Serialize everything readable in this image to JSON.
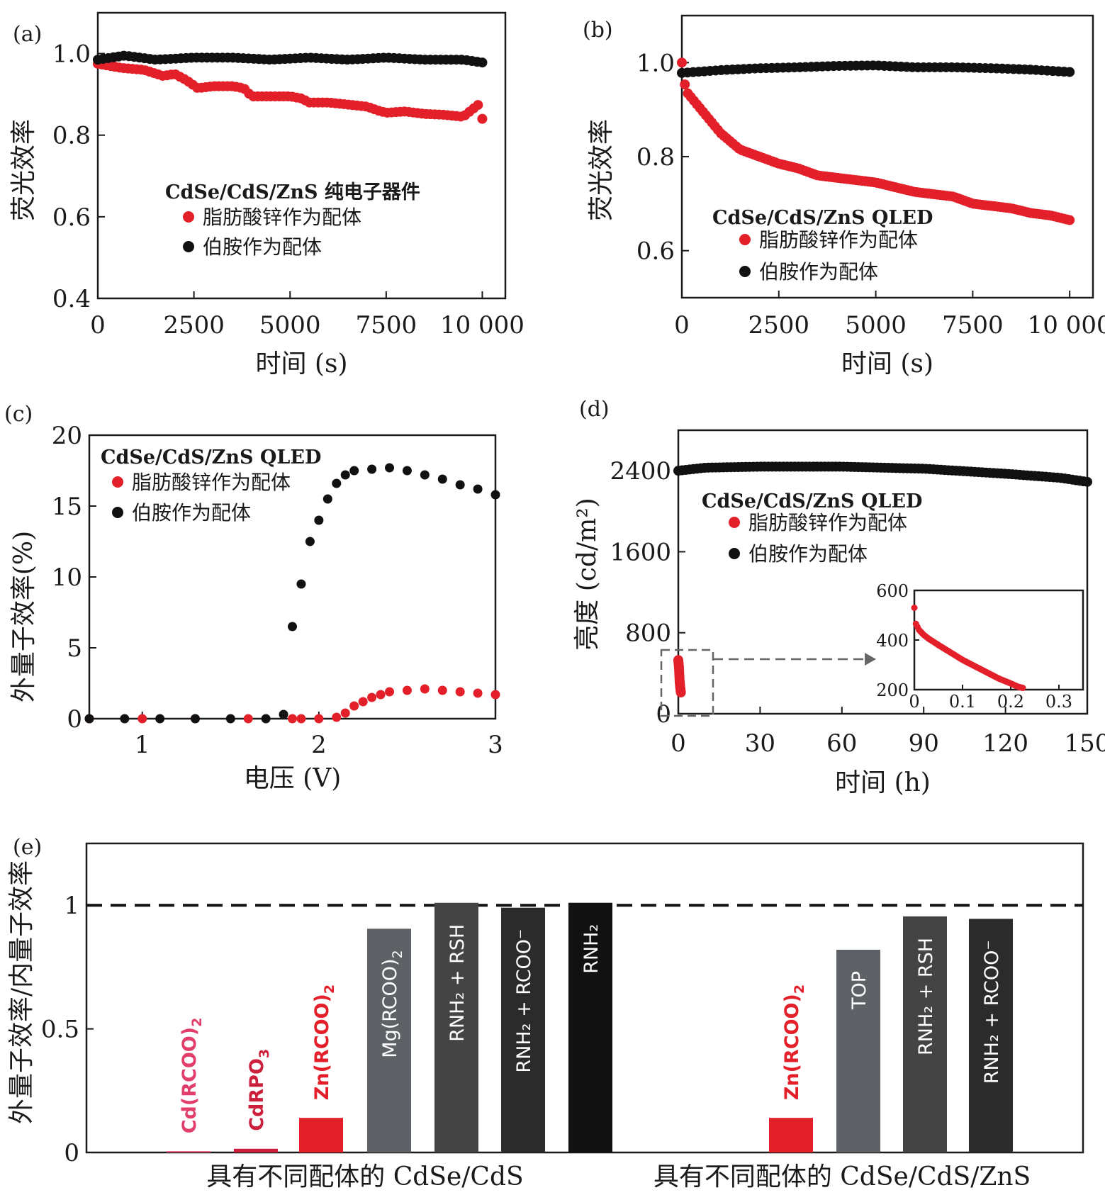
{
  "colors": {
    "red": "#e3202a",
    "black": "#111111",
    "pink": "#e23e6b",
    "crimson": "#cc1f3c",
    "gray_dark": "#2b2b2b",
    "gray_mid": "#444444",
    "gray_light": "#5e6166"
  },
  "chart_data": [
    {
      "id": "a",
      "panel_label": "(a)",
      "type": "scatter",
      "xlabel": "时间 (s)",
      "ylabel": "荧光效率",
      "xlim": [
        0,
        10600
      ],
      "ylim": [
        0.4,
        1.1
      ],
      "xticks": [
        0,
        2500,
        5000,
        7500,
        10000
      ],
      "xtick_labels": [
        "0",
        "2500",
        "5000",
        "7500",
        "10 000"
      ],
      "yticks": [
        0.4,
        0.6,
        0.8,
        1.0
      ],
      "ytick_labels": [
        "0.4",
        "0.6",
        "0.8",
        "1.0"
      ],
      "legend_title": "CdSe/CdS/ZnS 纯电子器件",
      "legend_placement": "center",
      "series": [
        {
          "name": "脂肪酸锌作为配体",
          "color": "#e3202a",
          "points": [
            [
              0,
              0.975
            ],
            [
              600,
              0.965
            ],
            [
              1200,
              0.96
            ],
            [
              1700,
              0.945
            ],
            [
              2000,
              0.95
            ],
            [
              2300,
              0.935
            ],
            [
              2600,
              0.915
            ],
            [
              3000,
              0.92
            ],
            [
              3500,
              0.92
            ],
            [
              3800,
              0.915
            ],
            [
              4000,
              0.895
            ],
            [
              4500,
              0.895
            ],
            [
              5000,
              0.895
            ],
            [
              5300,
              0.89
            ],
            [
              5500,
              0.88
            ],
            [
              6000,
              0.88
            ],
            [
              6500,
              0.875
            ],
            [
              7000,
              0.87
            ],
            [
              7300,
              0.86
            ],
            [
              7500,
              0.855
            ],
            [
              8000,
              0.858
            ],
            [
              8500,
              0.852
            ],
            [
              9000,
              0.85
            ],
            [
              9500,
              0.845
            ],
            [
              9900,
              0.875
            ],
            [
              10000,
              0.84
            ]
          ]
        },
        {
          "name": "伯胺作为配体",
          "color": "#111111",
          "points": [
            [
              0,
              0.985
            ],
            [
              700,
              0.995
            ],
            [
              1500,
              0.985
            ],
            [
              2500,
              0.99
            ],
            [
              3500,
              0.99
            ],
            [
              4500,
              0.985
            ],
            [
              5500,
              0.99
            ],
            [
              6500,
              0.985
            ],
            [
              7500,
              0.99
            ],
            [
              8500,
              0.985
            ],
            [
              9500,
              0.985
            ],
            [
              10000,
              0.978
            ]
          ]
        }
      ]
    },
    {
      "id": "b",
      "panel_label": "(b)",
      "type": "scatter",
      "xlabel": "时间 (s)",
      "ylabel": "荧光效率",
      "xlim": [
        0,
        10600
      ],
      "ylim": [
        0.5,
        1.1
      ],
      "xticks": [
        0,
        2500,
        5000,
        7500,
        10000
      ],
      "xtick_labels": [
        "0",
        "2500",
        "5000",
        "7500",
        "10 000"
      ],
      "yticks": [
        0.6,
        0.8,
        1.0
      ],
      "ytick_labels": [
        "0.6",
        "0.8",
        "1.0"
      ],
      "legend_title": "CdSe/CdS/ZnS QLED",
      "legend_placement": "bottom-left",
      "series": [
        {
          "name": "脂肪酸锌作为配体",
          "color": "#e3202a",
          "points": [
            [
              0,
              1.0
            ],
            [
              100,
              0.94
            ],
            [
              500,
              0.9
            ],
            [
              1000,
              0.85
            ],
            [
              1500,
              0.815
            ],
            [
              2000,
              0.8
            ],
            [
              2500,
              0.785
            ],
            [
              3000,
              0.775
            ],
            [
              3500,
              0.76
            ],
            [
              4000,
              0.755
            ],
            [
              4500,
              0.75
            ],
            [
              5000,
              0.745
            ],
            [
              5500,
              0.735
            ],
            [
              6000,
              0.725
            ],
            [
              6500,
              0.72
            ],
            [
              7000,
              0.715
            ],
            [
              7500,
              0.7
            ],
            [
              8000,
              0.695
            ],
            [
              8500,
              0.69
            ],
            [
              9000,
              0.68
            ],
            [
              9500,
              0.675
            ],
            [
              10000,
              0.665
            ]
          ]
        },
        {
          "name": "伯胺作为配体",
          "color": "#111111",
          "points": [
            [
              0,
              0.978
            ],
            [
              1000,
              0.984
            ],
            [
              2000,
              0.988
            ],
            [
              3000,
              0.99
            ],
            [
              4000,
              0.993
            ],
            [
              5000,
              0.994
            ],
            [
              6000,
              0.99
            ],
            [
              7000,
              0.99
            ],
            [
              8000,
              0.988
            ],
            [
              9000,
              0.985
            ],
            [
              10000,
              0.98
            ]
          ]
        }
      ]
    },
    {
      "id": "c",
      "panel_label": "(c)",
      "type": "scatter",
      "xlabel": "电压 (V)",
      "ylabel": "外量子效率(%)",
      "xlim": [
        0.7,
        3.0
      ],
      "ylim": [
        0,
        20
      ],
      "xticks": [
        1,
        2,
        3
      ],
      "xtick_labels": [
        "1",
        "2",
        "3"
      ],
      "yticks": [
        0,
        5,
        10,
        15,
        20
      ],
      "ytick_labels": [
        "0",
        "5",
        "10",
        "15",
        "20"
      ],
      "legend_title": "CdSe/CdS/ZnS QLED",
      "legend_placement": "top-left",
      "series": [
        {
          "name": "脂肪酸锌作为配体",
          "color": "#e3202a",
          "points": [
            [
              0.7,
              0
            ],
            [
              1.0,
              0
            ],
            [
              1.3,
              0
            ],
            [
              1.6,
              0
            ],
            [
              1.85,
              0
            ],
            [
              1.9,
              0
            ],
            [
              2.0,
              0
            ],
            [
              2.1,
              0.1
            ],
            [
              2.15,
              0.4
            ],
            [
              2.2,
              0.9
            ],
            [
              2.25,
              1.2
            ],
            [
              2.3,
              1.5
            ],
            [
              2.35,
              1.7
            ],
            [
              2.4,
              1.9
            ],
            [
              2.5,
              2.0
            ],
            [
              2.6,
              2.1
            ],
            [
              2.7,
              2.0
            ],
            [
              2.8,
              1.9
            ],
            [
              2.9,
              1.8
            ],
            [
              3.0,
              1.7
            ]
          ]
        },
        {
          "name": "伯胺作为配体",
          "color": "#111111",
          "points": [
            [
              0.7,
              0
            ],
            [
              0.9,
              0
            ],
            [
              1.1,
              0
            ],
            [
              1.3,
              0
            ],
            [
              1.5,
              0
            ],
            [
              1.7,
              0
            ],
            [
              1.8,
              0.3
            ],
            [
              1.85,
              6.5
            ],
            [
              1.9,
              9.5
            ],
            [
              1.95,
              12.5
            ],
            [
              2.0,
              14.0
            ],
            [
              2.05,
              15.5
            ],
            [
              2.1,
              16.6
            ],
            [
              2.15,
              17.2
            ],
            [
              2.2,
              17.5
            ],
            [
              2.3,
              17.6
            ],
            [
              2.4,
              17.7
            ],
            [
              2.5,
              17.5
            ],
            [
              2.6,
              17.2
            ],
            [
              2.7,
              16.9
            ],
            [
              2.8,
              16.5
            ],
            [
              2.9,
              16.2
            ],
            [
              3.0,
              15.8
            ]
          ]
        }
      ]
    },
    {
      "id": "d",
      "panel_label": "(d)",
      "type": "scatter",
      "xlabel": "时间 (h)",
      "ylabel": "亮度 (cd/m²)",
      "xlim": [
        0,
        150
      ],
      "ylim": [
        0,
        2800
      ],
      "xticks": [
        0,
        30,
        60,
        90,
        120,
        150
      ],
      "xtick_labels": [
        "0",
        "30",
        "60",
        "90",
        "120",
        "150"
      ],
      "yticks": [
        0,
        800,
        1600,
        2400
      ],
      "ytick_labels": [
        "0",
        "800",
        "1600",
        "2400"
      ],
      "legend_title": "CdSe/CdS/ZnS QLED",
      "legend_placement": "center-left",
      "series": [
        {
          "name": "脂肪酸锌作为配体",
          "color": "#e3202a",
          "points": [
            [
              0,
              530
            ],
            [
              0.05,
              460
            ],
            [
              0.1,
              330
            ],
            [
              0.15,
              260
            ],
            [
              0.2,
              210
            ]
          ]
        },
        {
          "name": "伯胺作为配体",
          "color": "#111111",
          "points": [
            [
              0,
              2400
            ],
            [
              10,
              2430
            ],
            [
              30,
              2440
            ],
            [
              60,
              2440
            ],
            [
              90,
              2420
            ],
            [
              120,
              2370
            ],
            [
              140,
              2330
            ],
            [
              150,
              2290
            ]
          ]
        }
      ],
      "inset": {
        "xlim": [
          0,
          0.35
        ],
        "ylim": [
          200,
          600
        ],
        "xticks": [
          0,
          0.1,
          0.2,
          0.3
        ],
        "xtick_labels": [
          "0",
          "0.1",
          "0.2",
          "0.3"
        ],
        "yticks": [
          200,
          400,
          600
        ],
        "ytick_labels": [
          "200",
          "400",
          "600"
        ],
        "points": [
          [
            0,
            530
          ],
          [
            0.002,
            470
          ],
          [
            0.01,
            440
          ],
          [
            0.02,
            420
          ],
          [
            0.03,
            405
          ],
          [
            0.05,
            380
          ],
          [
            0.075,
            350
          ],
          [
            0.1,
            320
          ],
          [
            0.125,
            295
          ],
          [
            0.15,
            270
          ],
          [
            0.175,
            245
          ],
          [
            0.2,
            225
          ],
          [
            0.215,
            212
          ],
          [
            0.225,
            207
          ]
        ]
      }
    },
    {
      "id": "e",
      "panel_label": "(e)",
      "type": "bar",
      "ylabel": "外量子效率/内量子效率",
      "ylim": [
        0,
        1.25
      ],
      "yticks": [
        0,
        0.5,
        1
      ],
      "ytick_labels": [
        "0",
        "0.5",
        "1"
      ],
      "reference_line": 1,
      "groups": [
        {
          "label": "具有不同配体的 CdSe/CdS",
          "bars": [
            {
              "label": "Cd(RCOO)",
              "sub": "2",
              "value": 0.005,
              "color": "#e23e6b"
            },
            {
              "label": "CdRPO",
              "sub": "3",
              "value": 0.015,
              "color": "#cc1f3c"
            },
            {
              "label": "Zn(RCOO)",
              "sub": "2",
              "value": 0.14,
              "color": "#e3202a"
            },
            {
              "label": "Mg(RCOO)",
              "sub": "2",
              "value": 0.905,
              "color": "#5e6166"
            },
            {
              "label": "RNH₂ + RSH",
              "value": 1.01,
              "color": "#444444"
            },
            {
              "label": "RNH₂ + RCOO⁻",
              "value": 0.99,
              "color": "#2b2b2b"
            },
            {
              "label": "RNH₂",
              "value": 1.01,
              "color": "#111111"
            }
          ]
        },
        {
          "label": "具有不同配体的 CdSe/CdS/ZnS",
          "bars": [
            {
              "label": "Zn(RCOO)",
              "sub": "2",
              "value": 0.14,
              "color": "#e3202a"
            },
            {
              "label": "TOP",
              "value": 0.82,
              "color": "#5e6166"
            },
            {
              "label": "RNH₂ + RSH",
              "value": 0.955,
              "color": "#444444"
            },
            {
              "label": "RNH₂ + RCOO⁻",
              "value": 0.945,
              "color": "#2b2b2b"
            }
          ]
        }
      ]
    }
  ]
}
